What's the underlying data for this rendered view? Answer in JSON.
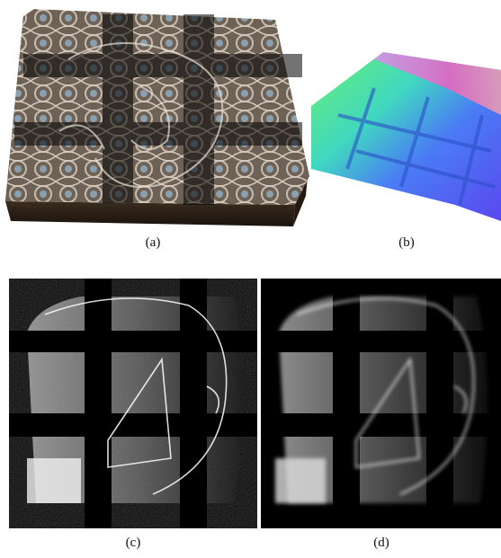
{
  "figure": {
    "panels": [
      {
        "id": "a",
        "caption": "(a)",
        "description_icon": "textured-heightfield-render"
      },
      {
        "id": "b",
        "caption": "(b)",
        "description_icon": "normal-map-render"
      },
      {
        "id": "c",
        "caption": "(c)",
        "description_icon": "noisy-grayscale-map"
      },
      {
        "id": "d",
        "caption": "(d)",
        "description_icon": "smoothed-grayscale-map"
      }
    ]
  }
}
